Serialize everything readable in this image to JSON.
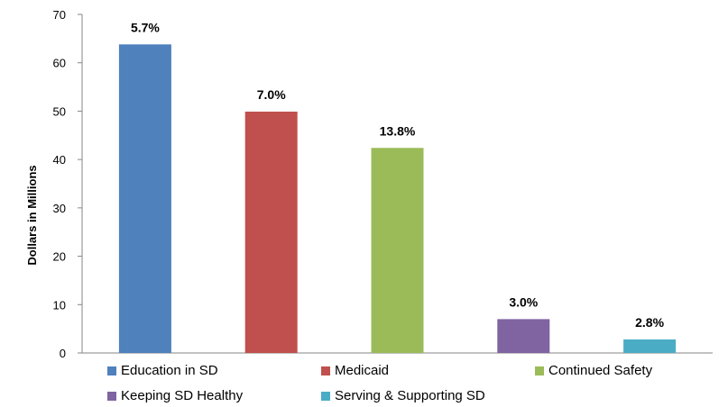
{
  "chart_data": {
    "type": "bar",
    "categories": [
      "Education in SD",
      "Medicaid",
      "Continued Safety",
      "Keeping SD Healthy",
      "Serving & Supporting SD"
    ],
    "values": [
      63.8,
      49.9,
      42.4,
      7.0,
      2.8
    ],
    "data_labels": [
      "5.7%",
      "7.0%",
      "13.8%",
      "3.0%",
      "2.8%"
    ],
    "colors": [
      "#4F81BD",
      "#C0504D",
      "#9BBB59",
      "#8064A2",
      "#4BACC6"
    ],
    "ylabel": "Dollars in Millions",
    "ylim": [
      0,
      70
    ],
    "yticks": [
      0,
      10,
      20,
      30,
      40,
      50,
      60,
      70
    ],
    "grid": false,
    "legend_position": "bottom"
  }
}
